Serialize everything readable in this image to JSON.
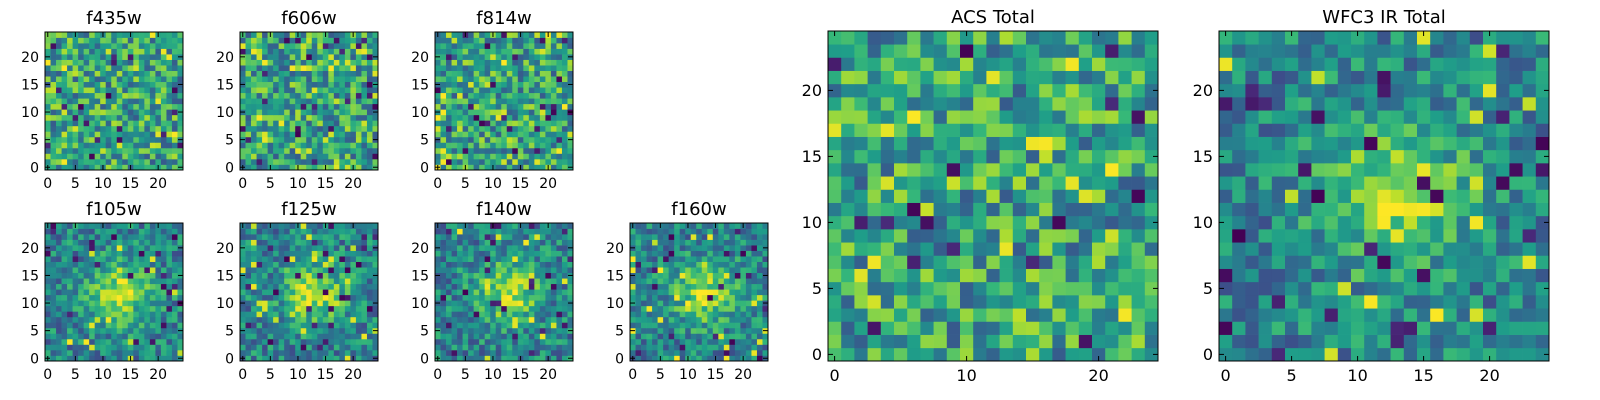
{
  "chart_data": [
    {
      "type": "heatmap",
      "title": "f435w",
      "grid_size": 25,
      "xticks": [
        0,
        5,
        10,
        15,
        20
      ],
      "yticks": [
        0,
        5,
        10,
        15,
        20
      ],
      "colormap": "viridis",
      "pattern": "noise",
      "seed": 11
    },
    {
      "type": "heatmap",
      "title": "f606w",
      "grid_size": 25,
      "xticks": [
        0,
        5,
        10,
        15,
        20
      ],
      "yticks": [
        0,
        5,
        10,
        15,
        20
      ],
      "colormap": "viridis",
      "pattern": "noise",
      "seed": 23
    },
    {
      "type": "heatmap",
      "title": "f814w",
      "grid_size": 25,
      "xticks": [
        0,
        5,
        10,
        15,
        20
      ],
      "yticks": [
        0,
        5,
        10,
        15,
        20
      ],
      "colormap": "viridis",
      "pattern": "noise",
      "seed": 37
    },
    {
      "type": "heatmap",
      "title": "f105w",
      "grid_size": 25,
      "xticks": [
        0,
        5,
        10,
        15,
        20
      ],
      "yticks": [
        0,
        5,
        10,
        15,
        20
      ],
      "colormap": "viridis",
      "pattern": "source",
      "seed": 41
    },
    {
      "type": "heatmap",
      "title": "f125w",
      "grid_size": 25,
      "xticks": [
        0,
        5,
        10,
        15,
        20
      ],
      "yticks": [
        0,
        5,
        10,
        15,
        20
      ],
      "colormap": "viridis",
      "pattern": "source",
      "seed": 53
    },
    {
      "type": "heatmap",
      "title": "f140w",
      "grid_size": 25,
      "xticks": [
        0,
        5,
        10,
        15,
        20
      ],
      "yticks": [
        0,
        5,
        10,
        15,
        20
      ],
      "colormap": "viridis",
      "pattern": "source",
      "seed": 67
    },
    {
      "type": "heatmap",
      "title": "f160w",
      "grid_size": 25,
      "xticks": [
        0,
        5,
        10,
        15,
        20
      ],
      "yticks": [
        0,
        5,
        10,
        15,
        20
      ],
      "colormap": "viridis",
      "pattern": "source",
      "seed": 79
    },
    {
      "type": "heatmap",
      "title": "ACS Total",
      "grid_size": 25,
      "xticks": [
        0,
        10,
        20
      ],
      "yticks": [
        0,
        5,
        10,
        15,
        20
      ],
      "colormap": "viridis",
      "pattern": "noise",
      "seed": 83
    },
    {
      "type": "heatmap",
      "title": "WFC3 IR Total",
      "grid_size": 25,
      "xticks": [
        0,
        5,
        10,
        15,
        20
      ],
      "yticks": [
        0,
        5,
        10,
        15,
        20
      ],
      "colormap": "viridis",
      "pattern": "source",
      "seed": 97
    }
  ]
}
